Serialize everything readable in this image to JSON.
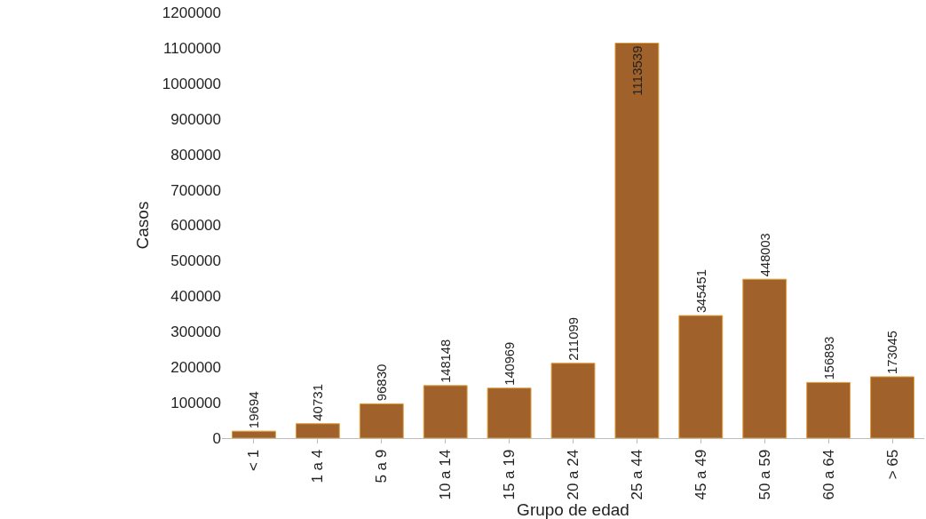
{
  "chart_data": {
    "type": "bar",
    "xlabel": "Grupo de edad",
    "ylabel": "Casos",
    "categories": [
      "< 1",
      "1 a 4",
      "5 a 9",
      "10 a 14",
      "15 a 19",
      "20 a 24",
      "25 a 44",
      "45 a 49",
      "50 a 59",
      "60 a 64",
      "> 65"
    ],
    "values": [
      19694,
      40731,
      96830,
      148148,
      140969,
      211099,
      1113539,
      345451,
      448003,
      156893,
      173045
    ],
    "color": "#a0622a",
    "data_labels": true,
    "ylim": [
      0,
      1200000
    ],
    "yticks": [
      0,
      100000,
      200000,
      300000,
      400000,
      500000,
      600000,
      700000,
      800000,
      900000,
      1000000,
      1100000,
      1200000
    ]
  }
}
